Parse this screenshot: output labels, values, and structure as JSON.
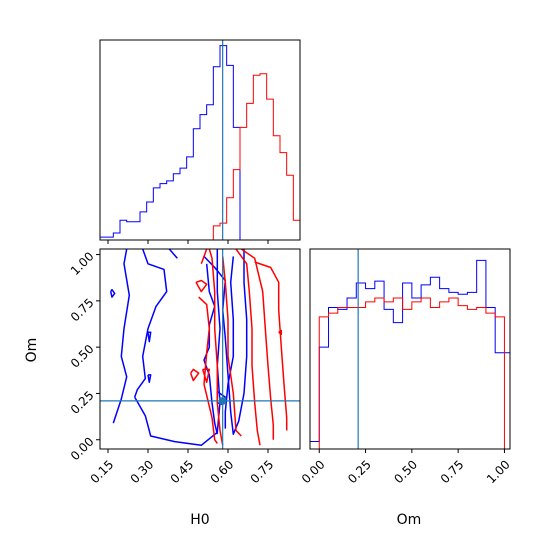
{
  "colors": {
    "series_a": "#0000ff",
    "series_b": "#ff0000",
    "truth": "#1f77b4",
    "frame": "#000000"
  },
  "chart_data": [
    {
      "type": "step-histogram",
      "panel": "top-left",
      "variable": "H0",
      "xlim": [
        0.12,
        0.87
      ],
      "truth": 0.58,
      "show_tick_labels": false,
      "xticks": [
        0.15,
        0.3,
        0.45,
        0.6,
        0.75
      ],
      "series": [
        {
          "color": "#0000ff",
          "bin_edges": [
            0.12,
            0.145,
            0.17,
            0.195,
            0.22,
            0.245,
            0.27,
            0.295,
            0.32,
            0.345,
            0.37,
            0.395,
            0.42,
            0.445,
            0.47,
            0.495,
            0.52,
            0.545,
            0.57,
            0.595,
            0.62,
            0.645,
            0.67,
            0.695,
            0.72,
            0.745,
            0.77,
            0.795,
            0.82,
            0.845,
            0.87
          ],
          "counts": [
            2,
            2,
            5,
            14,
            13,
            13,
            20,
            27,
            37,
            40,
            42,
            47,
            51,
            59,
            79,
            89,
            96,
            123,
            138,
            124,
            80,
            0,
            0,
            0,
            0,
            0,
            0,
            0,
            0,
            0
          ]
        },
        {
          "color": "#ff0000",
          "bin_edges": [
            0.12,
            0.145,
            0.17,
            0.195,
            0.22,
            0.245,
            0.27,
            0.295,
            0.32,
            0.345,
            0.37,
            0.395,
            0.42,
            0.445,
            0.47,
            0.495,
            0.52,
            0.545,
            0.57,
            0.595,
            0.62,
            0.645,
            0.67,
            0.695,
            0.72,
            0.745,
            0.77,
            0.795,
            0.82,
            0.845,
            0.87
          ],
          "counts": [
            0,
            0,
            0,
            0,
            0,
            0,
            0,
            0,
            0,
            0,
            0,
            0,
            0,
            0,
            0,
            0,
            0,
            10,
            12,
            30,
            50,
            80,
            97,
            117,
            118,
            100,
            74,
            62,
            46,
            14,
            0
          ]
        }
      ]
    },
    {
      "type": "contour",
      "panel": "bottom-left",
      "xlabel": "H0",
      "ylabel": "Om",
      "xlim": [
        0.12,
        0.87
      ],
      "ylim": [
        -0.05,
        1.03
      ],
      "xticks": [
        0.15,
        0.3,
        0.45,
        0.6,
        0.75
      ],
      "xtick_labels": [
        "0.15",
        "0.30",
        "0.45",
        "0.60",
        "0.75"
      ],
      "yticks": [
        0.0,
        0.25,
        0.5,
        0.75,
        1.0
      ],
      "ytick_labels": [
        "0.00",
        "0.25",
        "0.50",
        "0.75",
        "1.00"
      ],
      "truth": {
        "x": 0.58,
        "y": 0.21
      },
      "series": [
        {
          "color": "#0000ff",
          "contours": [
            [
              [
                0.17,
                0.09
              ],
              [
                0.2,
                0.22
              ],
              [
                0.22,
                0.34
              ],
              [
                0.2,
                0.45
              ],
              [
                0.21,
                0.6
              ],
              [
                0.23,
                0.78
              ],
              [
                0.21,
                0.95
              ],
              [
                0.22,
                1.03
              ]
            ],
            [
              [
                0.25,
                0.23
              ],
              [
                0.29,
                0.13
              ],
              [
                0.31,
                0.02
              ],
              [
                0.4,
                -0.01
              ],
              [
                0.5,
                -0.03
              ],
              [
                0.56,
                0.04
              ],
              [
                0.57,
                0.2
              ],
              [
                0.56,
                0.4
              ],
              [
                0.57,
                0.6
              ],
              [
                0.56,
                0.8
              ],
              [
                0.56,
                1.03
              ]
            ],
            [
              [
                0.28,
                1.03
              ],
              [
                0.3,
                0.95
              ],
              [
                0.36,
                0.92
              ],
              [
                0.37,
                0.8
              ],
              [
                0.33,
                0.72
              ],
              [
                0.3,
                0.6
              ],
              [
                0.28,
                0.45
              ],
              [
                0.29,
                0.33
              ],
              [
                0.26,
                0.27
              ],
              [
                0.25,
                0.23
              ]
            ],
            [
              [
                0.38,
                1.03
              ],
              [
                0.41,
                0.98
              ]
            ],
            [
              [
                0.51,
                0.99
              ],
              [
                0.55,
                0.93
              ],
              [
                0.59,
                0.86
              ],
              [
                0.58,
                0.7
              ],
              [
                0.59,
                0.55
              ],
              [
                0.6,
                0.35
              ],
              [
                0.61,
                0.15
              ],
              [
                0.62,
                0.03
              ],
              [
                0.64,
                0.1
              ],
              [
                0.66,
                0.25
              ],
              [
                0.67,
                0.45
              ],
              [
                0.67,
                0.65
              ],
              [
                0.66,
                0.85
              ],
              [
                0.66,
                1.03
              ]
            ],
            [
              [
                0.52,
                0.95
              ],
              [
                0.53,
                0.8
              ],
              [
                0.55,
                0.72
              ],
              [
                0.53,
                0.62
              ],
              [
                0.53,
                0.5
              ],
              [
                0.51,
                0.43
              ],
              [
                0.53,
                0.35
              ],
              [
                0.54,
                0.2
              ],
              [
                0.55,
                0.09
              ],
              [
                0.56,
                0.03
              ]
            ],
            [
              [
                0.62,
                0.99
              ],
              [
                0.61,
                0.85
              ],
              [
                0.62,
                0.65
              ],
              [
                0.62,
                0.45
              ],
              [
                0.6,
                0.3
              ],
              [
                0.59,
                0.15
              ],
              [
                0.59,
                0.06
              ]
            ],
            [
              [
                0.56,
                0.26
              ],
              [
                0.56,
                0.2
              ],
              [
                0.58,
                0.19
              ],
              [
                0.59,
                0.23
              ],
              [
                0.56,
                0.26
              ]
            ],
            [
              [
                0.16,
                0.8
              ],
              [
                0.165,
                0.77
              ],
              [
                0.175,
                0.79
              ],
              [
                0.165,
                0.81
              ],
              [
                0.16,
                0.8
              ]
            ],
            [
              [
                0.3,
                0.58
              ],
              [
                0.305,
                0.53
              ],
              [
                0.31,
                0.58
              ],
              [
                0.3,
                0.58
              ]
            ],
            [
              [
                0.3,
                0.35
              ],
              [
                0.305,
                0.31
              ],
              [
                0.31,
                0.35
              ],
              [
                0.3,
                0.35
              ]
            ]
          ]
        },
        {
          "color": "#ff0000",
          "contours": [
            [
              [
                0.5,
                0.95
              ],
              [
                0.52,
                1.03
              ]
            ],
            [
              [
                0.53,
                1.03
              ],
              [
                0.54,
                0.98
              ],
              [
                0.55,
                0.8
              ],
              [
                0.55,
                0.6
              ],
              [
                0.56,
                0.4
              ],
              [
                0.56,
                0.2
              ],
              [
                0.57,
                0.05
              ],
              [
                0.58,
                -0.03
              ]
            ],
            [
              [
                0.49,
                0.77
              ],
              [
                0.52,
                0.73
              ],
              [
                0.53,
                0.6
              ],
              [
                0.52,
                0.47
              ],
              [
                0.51,
                0.3
              ],
              [
                0.54,
                0.12
              ],
              [
                0.55,
                0.0
              ],
              [
                0.56,
                -0.02
              ]
            ],
            [
              [
                0.58,
                0.99
              ],
              [
                0.59,
                0.85
              ],
              [
                0.6,
                0.65
              ],
              [
                0.6,
                0.45
              ],
              [
                0.62,
                0.25
              ],
              [
                0.63,
                0.05
              ],
              [
                0.65,
                0.02
              ]
            ],
            [
              [
                0.63,
                1.03
              ],
              [
                0.67,
                0.95
              ],
              [
                0.68,
                0.8
              ],
              [
                0.69,
                0.6
              ],
              [
                0.69,
                0.4
              ],
              [
                0.7,
                0.2
              ],
              [
                0.71,
                0.05
              ],
              [
                0.72,
                -0.03
              ]
            ],
            [
              [
                0.65,
                1.03
              ],
              [
                0.7,
                0.98
              ],
              [
                0.73,
                0.8
              ],
              [
                0.74,
                0.6
              ],
              [
                0.75,
                0.4
              ],
              [
                0.76,
                0.22
              ],
              [
                0.77,
                0.08
              ],
              [
                0.77,
                0.0
              ]
            ],
            [
              [
                0.7,
                0.96
              ],
              [
                0.76,
                0.93
              ],
              [
                0.79,
                0.85
              ],
              [
                0.79,
                0.7
              ],
              [
                0.8,
                0.5
              ],
              [
                0.81,
                0.3
              ],
              [
                0.82,
                0.12
              ],
              [
                0.82,
                0.05
              ]
            ],
            [
              [
                0.48,
                0.85
              ],
              [
                0.5,
                0.8
              ],
              [
                0.52,
                0.84
              ],
              [
                0.5,
                0.86
              ],
              [
                0.48,
                0.85
              ]
            ],
            [
              [
                0.46,
                0.36
              ],
              [
                0.47,
                0.32
              ],
              [
                0.49,
                0.36
              ],
              [
                0.47,
                0.38
              ],
              [
                0.46,
                0.36
              ]
            ],
            [
              [
                0.505,
                0.38
              ],
              [
                0.52,
                0.31
              ],
              [
                0.53,
                0.38
              ],
              [
                0.505,
                0.38
              ]
            ],
            [
              [
                0.79,
                0.58
              ],
              [
                0.8,
                0.57
              ],
              [
                0.8,
                0.59
              ],
              [
                0.79,
                0.58
              ]
            ]
          ]
        }
      ]
    },
    {
      "type": "step-histogram",
      "panel": "bottom-right",
      "variable": "Om",
      "xlabel": "Om",
      "xlim": [
        -0.05,
        1.03
      ],
      "truth": 0.21,
      "xticks": [
        0.0,
        0.25,
        0.5,
        0.75,
        1.0
      ],
      "xtick_labels": [
        "0.00",
        "0.25",
        "0.50",
        "0.75",
        "1.00"
      ],
      "series": [
        {
          "color": "#0000ff",
          "bin_edges": [
            -0.05,
            0.0,
            0.05,
            0.1,
            0.15,
            0.2,
            0.25,
            0.3,
            0.35,
            0.4,
            0.45,
            0.5,
            0.55,
            0.6,
            0.65,
            0.7,
            0.75,
            0.8,
            0.85,
            0.9,
            0.95,
            1.0,
            1.03
          ],
          "counts": [
            4,
            54,
            75,
            74,
            80,
            88,
            85,
            89,
            74,
            67,
            88,
            80,
            87,
            91,
            85,
            83,
            82,
            83,
            100,
            75,
            51,
            51
          ]
        },
        {
          "color": "#ff0000",
          "bin_edges": [
            0.0,
            0.05,
            0.1,
            0.15,
            0.2,
            0.25,
            0.3,
            0.35,
            0.4,
            0.45,
            0.5,
            0.55,
            0.6,
            0.65,
            0.7,
            0.75,
            0.8,
            0.85,
            0.9,
            0.95,
            1.0
          ],
          "counts": [
            70,
            72,
            75,
            75,
            75,
            78,
            80,
            78,
            80,
            74,
            78,
            80,
            75,
            78,
            80,
            76,
            74,
            75,
            72,
            70
          ]
        }
      ]
    }
  ]
}
